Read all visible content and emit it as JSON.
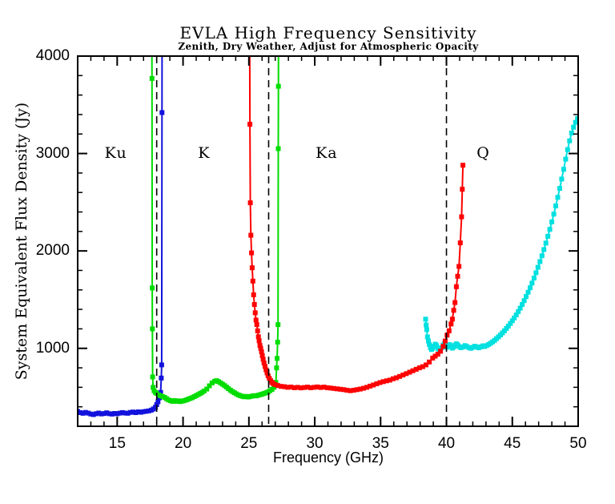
{
  "chart_data": {
    "type": "line",
    "title": "EVLA High Frequency Sensitivity",
    "subtitle": "Zenith, Dry Weather, Adjust for Atmospheric Opacity",
    "xlabel": "Frequency (GHz)",
    "ylabel": "System Equivalent Flux Density (Jy)",
    "xlim": [
      12,
      50
    ],
    "ylim": [
      200,
      4000
    ],
    "x_major_ticks": [
      15,
      20,
      25,
      30,
      35,
      40,
      45,
      50
    ],
    "x_minor_step": 1,
    "y_major_ticks": [
      1000,
      2000,
      3000,
      4000
    ],
    "y_minor_step": 200,
    "grid": false,
    "legend": "none",
    "frame_color": "#000000",
    "background_color": "#ffffff",
    "band_boundaries_dashed_ghz": [
      18.0,
      26.5,
      40.0
    ],
    "band_labels": [
      {
        "text": "Ku",
        "x": 14.9,
        "y": 3000
      },
      {
        "text": "K",
        "x": 21.6,
        "y": 3000
      },
      {
        "text": "Ka",
        "x": 30.9,
        "y": 3000
      },
      {
        "text": "Q",
        "x": 42.8,
        "y": 3000
      }
    ],
    "series": [
      {
        "name": "Ku",
        "color": "#1212dd",
        "marker": "square",
        "points": [
          [
            12.0,
            352
          ],
          [
            12.2,
            340
          ],
          [
            12.4,
            333
          ],
          [
            12.6,
            342
          ],
          [
            12.8,
            335
          ],
          [
            13.0,
            326
          ],
          [
            13.2,
            320
          ],
          [
            13.4,
            329
          ],
          [
            13.6,
            336
          ],
          [
            13.8,
            327
          ],
          [
            14.0,
            331
          ],
          [
            14.2,
            338
          ],
          [
            14.4,
            329
          ],
          [
            14.6,
            325
          ],
          [
            14.8,
            332
          ],
          [
            15.0,
            328
          ],
          [
            15.2,
            335
          ],
          [
            15.4,
            341
          ],
          [
            15.6,
            336
          ],
          [
            15.8,
            333
          ],
          [
            16.0,
            342
          ],
          [
            16.2,
            346
          ],
          [
            16.4,
            340
          ],
          [
            16.6,
            348
          ],
          [
            16.8,
            344
          ],
          [
            17.0,
            350
          ],
          [
            17.2,
            354
          ],
          [
            17.4,
            358
          ],
          [
            17.6,
            366
          ],
          [
            17.75,
            378
          ],
          [
            17.9,
            395
          ],
          [
            18.0,
            422
          ],
          [
            18.1,
            452
          ],
          [
            18.2,
            492
          ],
          [
            18.3,
            548
          ],
          [
            18.35,
            695
          ],
          [
            18.38,
            830
          ],
          [
            18.4,
            3420
          ],
          [
            18.41,
            4250
          ]
        ]
      },
      {
        "name": "K",
        "color": "#00dd00",
        "marker": "square",
        "points": [
          [
            17.63,
            4250
          ],
          [
            17.645,
            3770
          ],
          [
            17.66,
            1620
          ],
          [
            17.675,
            1200
          ],
          [
            17.69,
            707
          ],
          [
            17.73,
            600
          ],
          [
            17.8,
            565
          ],
          [
            17.9,
            548
          ],
          [
            18.0,
            538
          ],
          [
            18.15,
            522
          ],
          [
            18.3,
            512
          ],
          [
            18.45,
            505
          ],
          [
            18.6,
            496
          ],
          [
            18.75,
            483
          ],
          [
            18.9,
            471
          ],
          [
            19.05,
            462
          ],
          [
            19.2,
            456
          ],
          [
            19.35,
            464
          ],
          [
            19.5,
            456
          ],
          [
            19.65,
            461
          ],
          [
            19.8,
            453
          ],
          [
            19.95,
            459
          ],
          [
            20.1,
            464
          ],
          [
            20.25,
            470
          ],
          [
            20.4,
            478
          ],
          [
            20.55,
            486
          ],
          [
            20.7,
            494
          ],
          [
            20.85,
            504
          ],
          [
            21.0,
            515
          ],
          [
            21.15,
            526
          ],
          [
            21.3,
            536
          ],
          [
            21.45,
            548
          ],
          [
            21.6,
            562
          ],
          [
            21.8,
            582
          ],
          [
            22.0,
            615
          ],
          [
            22.2,
            645
          ],
          [
            22.4,
            662
          ],
          [
            22.55,
            668
          ],
          [
            22.7,
            658
          ],
          [
            22.85,
            645
          ],
          [
            23.0,
            632
          ],
          [
            23.15,
            618
          ],
          [
            23.3,
            602
          ],
          [
            23.45,
            586
          ],
          [
            23.6,
            570
          ],
          [
            23.75,
            556
          ],
          [
            23.9,
            545
          ],
          [
            24.05,
            532
          ],
          [
            24.2,
            522
          ],
          [
            24.35,
            514
          ],
          [
            24.5,
            508
          ],
          [
            24.65,
            503
          ],
          [
            24.8,
            507
          ],
          [
            24.95,
            500
          ],
          [
            25.1,
            505
          ],
          [
            25.25,
            510
          ],
          [
            25.4,
            514
          ],
          [
            25.55,
            512
          ],
          [
            25.7,
            518
          ],
          [
            25.85,
            524
          ],
          [
            26.0,
            530
          ],
          [
            26.15,
            536
          ],
          [
            26.3,
            544
          ],
          [
            26.45,
            552
          ],
          [
            26.6,
            565
          ],
          [
            26.75,
            578
          ],
          [
            26.9,
            600
          ],
          [
            27.05,
            650
          ],
          [
            27.1,
            800
          ],
          [
            27.14,
            897
          ],
          [
            27.18,
            1064
          ],
          [
            27.21,
            1244
          ],
          [
            27.23,
            3050
          ],
          [
            27.245,
            3690
          ],
          [
            27.25,
            4250
          ]
        ]
      },
      {
        "name": "Q",
        "color": "#00e0e0",
        "marker": "square",
        "points": [
          [
            38.42,
            1300
          ],
          [
            38.46,
            1240
          ],
          [
            38.5,
            1192
          ],
          [
            38.56,
            1117
          ],
          [
            38.63,
            1075
          ],
          [
            38.7,
            1040
          ],
          [
            38.78,
            1008
          ],
          [
            38.86,
            988
          ],
          [
            38.95,
            1002
          ],
          [
            39.05,
            1022
          ],
          [
            39.15,
            1042
          ],
          [
            39.25,
            1028
          ],
          [
            39.35,
            1000
          ],
          [
            39.45,
            972
          ],
          [
            39.55,
            985
          ],
          [
            39.65,
            1008
          ],
          [
            39.75,
            1032
          ],
          [
            39.85,
            1048
          ],
          [
            39.95,
            1030
          ],
          [
            40.05,
            1012
          ],
          [
            40.15,
            1024
          ],
          [
            40.25,
            1038
          ],
          [
            40.35,
            1020
          ],
          [
            40.45,
            1002
          ],
          [
            40.55,
            1014
          ],
          [
            40.65,
            1032
          ],
          [
            40.75,
            1046
          ],
          [
            40.85,
            1036
          ],
          [
            40.95,
            1018
          ],
          [
            41.1,
            1006
          ],
          [
            41.25,
            1014
          ],
          [
            41.4,
            1028
          ],
          [
            41.55,
            1018
          ],
          [
            41.7,
            1008
          ],
          [
            41.85,
            1000
          ],
          [
            42.0,
            1010
          ],
          [
            42.15,
            1022
          ],
          [
            42.3,
            1014
          ],
          [
            42.45,
            1005
          ],
          [
            42.6,
            1015
          ],
          [
            42.75,
            1026
          ],
          [
            42.9,
            1018
          ],
          [
            43.05,
            1028
          ],
          [
            43.2,
            1040
          ],
          [
            43.35,
            1052
          ],
          [
            43.5,
            1066
          ],
          [
            43.65,
            1082
          ],
          [
            43.8,
            1100
          ],
          [
            43.95,
            1118
          ],
          [
            44.1,
            1138
          ],
          [
            44.25,
            1158
          ],
          [
            44.4,
            1180
          ],
          [
            44.55,
            1204
          ],
          [
            44.7,
            1228
          ],
          [
            44.85,
            1255
          ],
          [
            45.0,
            1283
          ],
          [
            45.15,
            1312
          ],
          [
            45.3,
            1343
          ],
          [
            45.45,
            1377
          ],
          [
            45.6,
            1412
          ],
          [
            45.75,
            1450
          ],
          [
            45.9,
            1490
          ],
          [
            46.05,
            1532
          ],
          [
            46.2,
            1576
          ],
          [
            46.35,
            1622
          ],
          [
            46.5,
            1670
          ],
          [
            46.65,
            1722
          ],
          [
            46.8,
            1776
          ],
          [
            46.95,
            1832
          ],
          [
            47.1,
            1890
          ],
          [
            47.25,
            1950
          ],
          [
            47.4,
            2014
          ],
          [
            47.55,
            2080
          ],
          [
            47.7,
            2150
          ],
          [
            47.85,
            2222
          ],
          [
            48.0,
            2298
          ],
          [
            48.15,
            2378
          ],
          [
            48.3,
            2462
          ],
          [
            48.45,
            2550
          ],
          [
            48.6,
            2642
          ],
          [
            48.75,
            2738
          ],
          [
            48.9,
            2838
          ],
          [
            49.05,
            2942
          ],
          [
            49.2,
            3040
          ],
          [
            49.35,
            3130
          ],
          [
            49.5,
            3210
          ],
          [
            49.65,
            3270
          ],
          [
            49.8,
            3320
          ],
          [
            49.95,
            3360
          ]
        ]
      },
      {
        "name": "Ka",
        "color": "#ff0000",
        "marker": "square",
        "points": [
          [
            25.06,
            4250
          ],
          [
            25.08,
            3300
          ],
          [
            25.11,
            2494
          ],
          [
            25.15,
            2161
          ],
          [
            25.2,
            1980
          ],
          [
            25.25,
            1827
          ],
          [
            25.3,
            1690
          ],
          [
            25.36,
            1550
          ],
          [
            25.42,
            1450
          ],
          [
            25.48,
            1365
          ],
          [
            25.54,
            1290
          ],
          [
            25.6,
            1244
          ],
          [
            25.66,
            1180
          ],
          [
            25.72,
            1119
          ],
          [
            25.78,
            1078
          ],
          [
            25.84,
            1030
          ],
          [
            25.9,
            1000
          ],
          [
            25.96,
            965
          ],
          [
            26.02,
            925
          ],
          [
            26.08,
            888
          ],
          [
            26.15,
            850
          ],
          [
            26.22,
            815
          ],
          [
            26.3,
            780
          ],
          [
            26.38,
            748
          ],
          [
            26.46,
            718
          ],
          [
            26.55,
            692
          ],
          [
            26.65,
            668
          ],
          [
            26.75,
            650
          ],
          [
            26.85,
            638
          ],
          [
            27.0,
            628
          ],
          [
            27.2,
            618
          ],
          [
            27.45,
            610
          ],
          [
            27.7,
            606
          ],
          [
            27.95,
            600
          ],
          [
            28.2,
            603
          ],
          [
            28.45,
            596
          ],
          [
            28.7,
            600
          ],
          [
            28.95,
            594
          ],
          [
            29.2,
            598
          ],
          [
            29.45,
            602
          ],
          [
            29.7,
            596
          ],
          [
            29.95,
            600
          ],
          [
            30.2,
            604
          ],
          [
            30.45,
            598
          ],
          [
            30.7,
            602
          ],
          [
            30.95,
            596
          ],
          [
            31.2,
            592
          ],
          [
            31.45,
            588
          ],
          [
            31.7,
            584
          ],
          [
            31.95,
            580
          ],
          [
            32.2,
            576
          ],
          [
            32.45,
            570
          ],
          [
            32.7,
            565
          ],
          [
            32.95,
            570
          ],
          [
            33.2,
            576
          ],
          [
            33.45,
            582
          ],
          [
            33.7,
            590
          ],
          [
            33.95,
            600
          ],
          [
            34.2,
            612
          ],
          [
            34.45,
            624
          ],
          [
            34.7,
            636
          ],
          [
            34.95,
            648
          ],
          [
            35.2,
            658
          ],
          [
            35.45,
            666
          ],
          [
            35.7,
            674
          ],
          [
            35.95,
            688
          ],
          [
            36.2,
            698
          ],
          [
            36.45,
            712
          ],
          [
            36.7,
            726
          ],
          [
            36.95,
            740
          ],
          [
            37.2,
            755
          ],
          [
            37.45,
            770
          ],
          [
            37.7,
            785
          ],
          [
            37.95,
            800
          ],
          [
            38.2,
            812
          ],
          [
            38.45,
            830
          ],
          [
            38.7,
            860
          ],
          [
            38.95,
            900
          ],
          [
            39.15,
            920
          ],
          [
            39.35,
            940
          ],
          [
            39.55,
            970
          ],
          [
            39.75,
            1020
          ],
          [
            39.9,
            1075
          ],
          [
            40.05,
            1135
          ],
          [
            40.2,
            1180
          ],
          [
            40.35,
            1250
          ],
          [
            40.45,
            1300
          ],
          [
            40.55,
            1390
          ],
          [
            40.65,
            1470
          ],
          [
            40.75,
            1633
          ],
          [
            40.85,
            1740
          ],
          [
            40.95,
            1841
          ],
          [
            41.05,
            2083
          ],
          [
            41.15,
            2350
          ],
          [
            41.2,
            2633
          ],
          [
            41.25,
            2880
          ]
        ]
      }
    ]
  }
}
